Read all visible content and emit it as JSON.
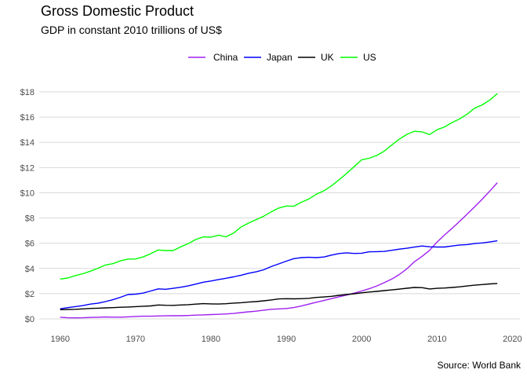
{
  "chart_data": {
    "type": "line",
    "title": "Gross Domestic Product",
    "subtitle": "GDP in constant 2010 trillions of US$",
    "caption": "Source: World Bank",
    "xlabel": "",
    "ylabel": "",
    "xlim": [
      1960,
      2020
    ],
    "ylim": [
      0,
      18
    ],
    "x_ticks": [
      1960,
      1970,
      1980,
      1990,
      2000,
      2010,
      2020
    ],
    "y_ticks": [
      0,
      2,
      4,
      6,
      8,
      10,
      12,
      14,
      16,
      18
    ],
    "y_tick_labels": [
      "$0",
      "$2",
      "$4",
      "$6",
      "$8",
      "$10",
      "$12",
      "$14",
      "$16",
      "$18"
    ],
    "grid": "horizontal",
    "legend_position": "top",
    "x": [
      1960,
      1961,
      1962,
      1963,
      1964,
      1965,
      1966,
      1967,
      1968,
      1969,
      1970,
      1971,
      1972,
      1973,
      1974,
      1975,
      1976,
      1977,
      1978,
      1979,
      1980,
      1981,
      1982,
      1983,
      1984,
      1985,
      1986,
      1987,
      1988,
      1989,
      1990,
      1991,
      1992,
      1993,
      1994,
      1995,
      1996,
      1997,
      1998,
      1999,
      2000,
      2001,
      2002,
      2003,
      2004,
      2005,
      2006,
      2007,
      2008,
      2009,
      2010,
      2011,
      2012,
      2013,
      2014,
      2015,
      2016,
      2017,
      2018
    ],
    "series": [
      {
        "name": "China",
        "color": "#a020f0",
        "values": [
          0.13,
          0.09,
          0.08,
          0.09,
          0.11,
          0.13,
          0.15,
          0.14,
          0.14,
          0.16,
          0.19,
          0.21,
          0.21,
          0.23,
          0.24,
          0.25,
          0.25,
          0.27,
          0.3,
          0.32,
          0.34,
          0.36,
          0.39,
          0.43,
          0.5,
          0.56,
          0.61,
          0.69,
          0.76,
          0.79,
          0.82,
          0.9,
          1.02,
          1.17,
          1.32,
          1.46,
          1.61,
          1.75,
          1.89,
          2.04,
          2.21,
          2.39,
          2.61,
          2.87,
          3.16,
          3.52,
          3.97,
          4.53,
          4.96,
          5.43,
          6.09,
          6.66,
          7.18,
          7.74,
          8.31,
          8.89,
          9.49,
          10.14,
          10.8
        ]
      },
      {
        "name": "Japan",
        "color": "#0000ff",
        "values": [
          0.8,
          0.89,
          0.97,
          1.05,
          1.17,
          1.24,
          1.37,
          1.52,
          1.71,
          1.93,
          1.96,
          2.04,
          2.21,
          2.38,
          2.35,
          2.42,
          2.51,
          2.62,
          2.76,
          2.91,
          3.0,
          3.12,
          3.22,
          3.33,
          3.46,
          3.62,
          3.73,
          3.89,
          4.15,
          4.36,
          4.58,
          4.78,
          4.86,
          4.88,
          4.86,
          4.91,
          5.06,
          5.18,
          5.24,
          5.19,
          5.21,
          5.32,
          5.33,
          5.35,
          5.44,
          5.53,
          5.6,
          5.69,
          5.78,
          5.72,
          5.7,
          5.7,
          5.78,
          5.86,
          5.89,
          5.97,
          6.02,
          6.1,
          6.19
        ]
      },
      {
        "name": "UK",
        "color": "#000000",
        "values": [
          0.73,
          0.75,
          0.76,
          0.79,
          0.83,
          0.85,
          0.87,
          0.89,
          0.92,
          0.94,
          0.97,
          1.0,
          1.03,
          1.1,
          1.08,
          1.07,
          1.1,
          1.13,
          1.17,
          1.21,
          1.19,
          1.18,
          1.2,
          1.25,
          1.28,
          1.33,
          1.37,
          1.43,
          1.5,
          1.58,
          1.6,
          1.59,
          1.6,
          1.63,
          1.7,
          1.74,
          1.79,
          1.87,
          1.93,
          1.99,
          2.07,
          2.13,
          2.18,
          2.24,
          2.3,
          2.36,
          2.43,
          2.49,
          2.48,
          2.37,
          2.42,
          2.45,
          2.49,
          2.54,
          2.61,
          2.67,
          2.72,
          2.77,
          2.81
        ]
      },
      {
        "name": "US",
        "color": "#00ff00",
        "values": [
          3.16,
          3.24,
          3.43,
          3.58,
          3.78,
          4.01,
          4.27,
          4.38,
          4.6,
          4.74,
          4.75,
          4.91,
          5.17,
          5.46,
          5.42,
          5.42,
          5.72,
          5.97,
          6.3,
          6.5,
          6.48,
          6.64,
          6.51,
          6.8,
          7.29,
          7.6,
          7.87,
          8.14,
          8.48,
          8.79,
          8.95,
          8.93,
          9.25,
          9.51,
          9.89,
          10.16,
          10.55,
          11.03,
          11.53,
          12.07,
          12.62,
          12.74,
          12.96,
          13.3,
          13.79,
          14.25,
          14.63,
          14.88,
          14.83,
          14.62,
          15.0,
          15.22,
          15.57,
          15.86,
          16.24,
          16.71,
          16.97,
          17.35,
          17.86
        ]
      }
    ]
  }
}
